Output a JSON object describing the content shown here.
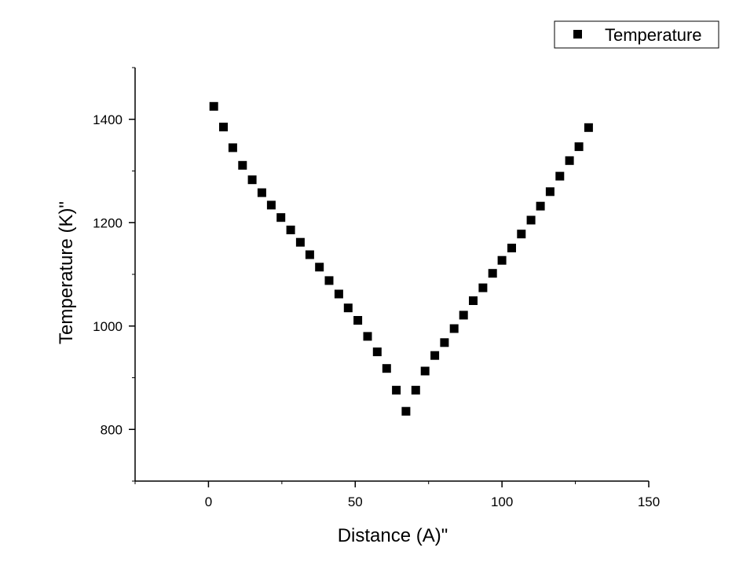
{
  "chart_data": {
    "type": "scatter",
    "xlabel": "Distance (A)\"",
    "ylabel": "Temperature (K)\"",
    "xlim": [
      -25,
      150
    ],
    "ylim": [
      700,
      1500
    ],
    "xticks": [
      0,
      50,
      100,
      150
    ],
    "yticks": [
      800,
      1000,
      1200,
      1400
    ],
    "x_minor_step": 25,
    "y_minor_step": 100,
    "grid": false,
    "legend_position": "top-right",
    "marker": "square",
    "colors": {
      "marker": "#000000",
      "axis": "#000000"
    },
    "series": [
      {
        "name": "Temperature",
        "x": [
          1.8,
          5.1,
          8.3,
          11.6,
          14.9,
          18.2,
          21.4,
          24.7,
          28.0,
          31.3,
          34.5,
          37.8,
          41.1,
          44.4,
          47.6,
          50.9,
          54.2,
          57.5,
          60.7,
          64.0,
          67.3,
          70.6,
          73.8,
          77.1,
          80.4,
          83.7,
          86.9,
          90.2,
          93.5,
          96.8,
          100.0,
          103.3,
          106.6,
          109.9,
          113.1,
          116.4,
          119.7,
          123.0,
          126.2,
          129.5
        ],
        "y": [
          1425,
          1385,
          1345,
          1311,
          1283,
          1258,
          1234,
          1210,
          1186,
          1162,
          1138,
          1114,
          1088,
          1062,
          1035,
          1011,
          980,
          950,
          918,
          876,
          835,
          876,
          913,
          943,
          968,
          995,
          1021,
          1049,
          1074,
          1102,
          1127,
          1151,
          1178,
          1205,
          1232,
          1260,
          1290,
          1320,
          1347,
          1384
        ]
      }
    ]
  }
}
